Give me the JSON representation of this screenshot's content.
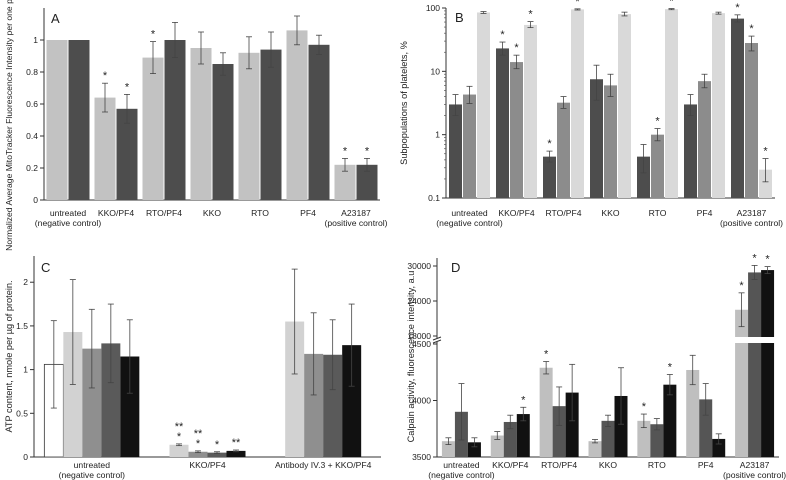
{
  "chart_data": [
    {
      "panel": "A",
      "type": "bar",
      "ylabel": "Normalized Average MitoTracker Fluorescence Intensity per one platelet, a.u.",
      "ylim": [
        0,
        1.2
      ],
      "yticks": [
        0,
        0.2,
        0.4,
        0.6,
        0.8,
        1
      ],
      "categories": [
        "untreated\n(negative control)",
        "KKO/PF4",
        "RTO/PF4",
        "KKO",
        "RTO",
        "PF4",
        "A23187\n(positive control)"
      ],
      "series": [
        {
          "name": "series 1",
          "color": "#c2c2c2",
          "values": [
            1.0,
            0.64,
            0.89,
            0.95,
            0.92,
            1.06,
            0.22
          ],
          "errors": [
            0,
            0.09,
            0.1,
            0.1,
            0.1,
            0.09,
            0.04
          ],
          "sig": [
            "",
            "*",
            "*",
            "",
            "",
            "",
            "*"
          ]
        },
        {
          "name": "series 2",
          "color": "#4d4d4d",
          "values": [
            1.0,
            0.57,
            1.0,
            0.85,
            0.94,
            0.97,
            0.22
          ],
          "errors": [
            0,
            0.09,
            0.11,
            0.07,
            0.11,
            0.06,
            0.04
          ],
          "sig": [
            "",
            "*",
            "",
            "",
            "",
            "",
            "*"
          ]
        }
      ]
    },
    {
      "panel": "B",
      "type": "bar",
      "yscale": "log",
      "ylabel": "Subpopulations of platelets, %",
      "ylim": [
        0.1,
        100
      ],
      "yticks": [
        0.1,
        1,
        10,
        100
      ],
      "ytick_labels": [
        "0.1",
        "1",
        "10",
        "100"
      ],
      "categories": [
        "untreated\n(negative control)",
        "KKO/PF4",
        "RTO/PF4",
        "KKO",
        "RTO",
        "PF4",
        "A23187\n(positive control)"
      ],
      "series": [
        {
          "name": "series 1",
          "color": "#4d4d4d",
          "values": [
            3.0,
            23,
            0.45,
            7.5,
            0.45,
            3.0,
            68
          ],
          "errors_lo": [
            1.0,
            5,
            0.08,
            4,
            0.2,
            1.0,
            8
          ],
          "errors_hi": [
            1.3,
            6,
            0.1,
            5,
            0.25,
            1.3,
            10
          ],
          "sig": [
            "",
            "*",
            "*",
            "",
            "",
            "",
            "*"
          ]
        },
        {
          "name": "series 2",
          "color": "#8c8c8c",
          "values": [
            4.3,
            14,
            3.2,
            6.0,
            1.0,
            7.0,
            28
          ],
          "errors_lo": [
            1.2,
            3,
            0.6,
            2,
            0.2,
            1.5,
            7
          ],
          "errors_hi": [
            1.5,
            4,
            0.8,
            3,
            0.25,
            2,
            8
          ],
          "sig": [
            "",
            "*",
            "",
            "",
            "*",
            "",
            "*"
          ]
        },
        {
          "name": "series 3",
          "color": "#d9d9d9",
          "values": [
            85,
            54,
            95,
            80,
            96,
            83,
            0.28
          ],
          "errors_lo": [
            3,
            5,
            2,
            5,
            2,
            3,
            0.1
          ],
          "errors_hi": [
            3,
            7,
            2,
            6,
            2,
            3,
            0.14
          ],
          "sig": [
            "",
            "*",
            "*",
            "",
            "*",
            "",
            "*"
          ]
        }
      ]
    },
    {
      "panel": "C",
      "type": "bar",
      "ylabel": "ATP content, nmole per µg of protein.",
      "ylim": [
        0,
        2.3
      ],
      "yticks": [
        0,
        0.5,
        1,
        1.5,
        2
      ],
      "ytick_labels": [
        "0",
        "0.5",
        "1",
        "1.5",
        "2"
      ],
      "categories": [
        "untreated\n(negative control)",
        "KKO/PF4",
        "Antibody IV.3 + KKO/PF4"
      ],
      "series": [
        {
          "name": "series 1",
          "color": "#ffffff",
          "values": [
            1.06,
            null,
            null
          ],
          "errors": [
            0.5,
            0,
            0
          ],
          "sig": [
            "",
            "",
            ""
          ]
        },
        {
          "name": "series 2",
          "color": "#d2d2d2",
          "values": [
            1.43,
            0.14,
            1.55
          ],
          "errors": [
            0.6,
            0.01,
            0.6
          ],
          "sig": [
            "",
            "**\n*",
            ""
          ]
        },
        {
          "name": "series 3",
          "color": "#8f8f8f",
          "values": [
            1.24,
            0.06,
            1.18
          ],
          "errors": [
            0.45,
            0.01,
            0.47
          ],
          "sig": [
            "",
            "**\n*",
            ""
          ]
        },
        {
          "name": "series 4",
          "color": "#5a5a5a",
          "values": [
            1.3,
            0.05,
            1.17
          ],
          "errors": [
            0.45,
            0.01,
            0.4
          ],
          "sig": [
            "",
            "*",
            ""
          ]
        },
        {
          "name": "series 5",
          "color": "#111111",
          "values": [
            1.15,
            0.07,
            1.28
          ],
          "errors": [
            0.42,
            0.01,
            0.47
          ],
          "sig": [
            "",
            "**",
            ""
          ]
        }
      ]
    },
    {
      "panel": "D",
      "type": "bar",
      "ylabel": "Calpain activity, fluorescence intensity, a.u",
      "y_break": true,
      "ylim_lower": [
        3500,
        4500
      ],
      "yticks_lower": [
        3500,
        4000,
        4500
      ],
      "ylim_upper": [
        18000,
        30000
      ],
      "yticks_upper": [
        18000,
        24000,
        30000
      ],
      "ytick_labels_lower": [
        "3500",
        "4000",
        "4500"
      ],
      "ytick_labels_upper": [
        "18000",
        "24000",
        "30000"
      ],
      "categories": [
        "untreated\n(negative control)",
        "KKO/PF4",
        "RTO/PF4",
        "KKO",
        "RTO",
        "PF4",
        "A23187\n(positive control)"
      ],
      "series": [
        {
          "name": "series 1",
          "color": "#bfbfbf",
          "values": [
            3640,
            3690,
            4290,
            3640,
            3820,
            4270,
            22500
          ],
          "errors": [
            30,
            35,
            55,
            15,
            60,
            130,
            2900
          ],
          "sig": [
            "",
            "",
            "*",
            "",
            "*",
            "",
            "*"
          ]
        },
        {
          "name": "series 2",
          "color": "#555555",
          "values": [
            3900,
            3810,
            3950,
            3820,
            3790,
            4010,
            28900
          ],
          "errors": [
            250,
            60,
            170,
            50,
            50,
            140,
            1200
          ],
          "sig": [
            "",
            "",
            "",
            "",
            "",
            "",
            "*"
          ]
        },
        {
          "name": "series 3",
          "color": "#111111",
          "values": [
            3630,
            3880,
            4070,
            4040,
            4140,
            3660,
            29300
          ],
          "errors": [
            40,
            60,
            250,
            250,
            90,
            45,
            600
          ],
          "sig": [
            "",
            "*",
            "",
            "",
            "*",
            "",
            "*"
          ]
        }
      ]
    }
  ]
}
